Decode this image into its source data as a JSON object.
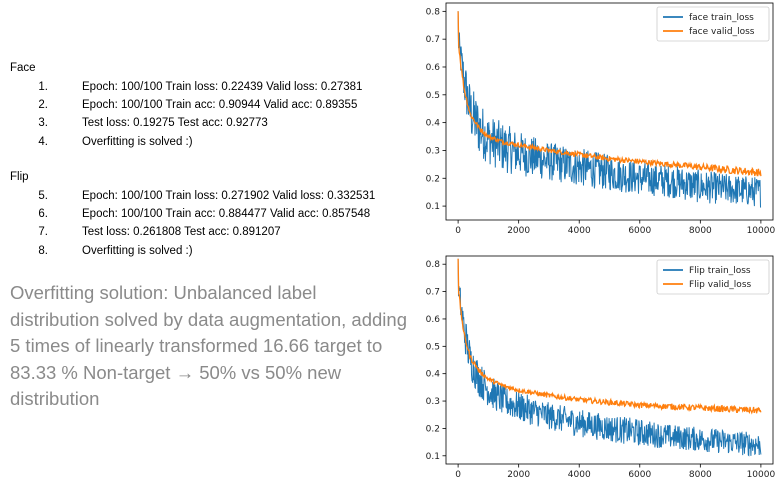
{
  "face": {
    "title": "Face",
    "items": [
      {
        "num": "1.",
        "text": "Epoch: 100/100 Train loss: 0.22439 Valid loss: 0.27381"
      },
      {
        "num": "2.",
        "text": "Epoch: 100/100 Train acc: 0.90944 Valid acc: 0.89355"
      },
      {
        "num": "3.",
        "text": "Test loss: 0.19275 Test acc: 0.92773"
      },
      {
        "num": "4.",
        "text": "Overfitting is solved :)"
      }
    ]
  },
  "flip": {
    "title": "Flip",
    "items": [
      {
        "num": "5.",
        "text": "Epoch: 100/100 Train loss: 0.271902 Valid loss: 0.332531"
      },
      {
        "num": "6.",
        "text": "Epoch: 100/100 Train acc: 0.884477 Valid acc: 0.857548"
      },
      {
        "num": "7.",
        "text": "Test loss: 0.261808 Test acc: 0.891207"
      },
      {
        "num": "8.",
        "text": "Overfitting is solved :)"
      }
    ]
  },
  "summary": "Overfitting solution: Unbalanced label distribution solved by data augmentation, adding 5 times of linearly transformed 16.66 target to 83.33 % Non-target → 50% vs 50% new distribution",
  "chart_data": [
    {
      "type": "line",
      "title": "",
      "xlabel": "",
      "ylabel": "",
      "xlim": [
        -400,
        10400
      ],
      "ylim": [
        0.05,
        0.83
      ],
      "xticks": [
        0,
        2000,
        4000,
        6000,
        8000,
        10000
      ],
      "yticks": [
        0.1,
        0.2,
        0.3,
        0.4,
        0.5,
        0.6,
        0.7,
        0.8
      ],
      "grid": false,
      "legend": "top-right",
      "series": [
        {
          "name": "face train_loss",
          "color": "#1f77b4",
          "x": [
            0,
            100,
            200,
            400,
            700,
            1000,
            1500,
            2000,
            3000,
            4000,
            5000,
            6000,
            7000,
            8000,
            9000,
            10000
          ],
          "y": [
            0.7,
            0.62,
            0.55,
            0.44,
            0.38,
            0.34,
            0.31,
            0.29,
            0.26,
            0.24,
            0.22,
            0.2,
            0.19,
            0.17,
            0.16,
            0.15
          ],
          "noise": [
            0.05,
            0.07,
            0.09,
            0.1,
            0.1,
            0.09,
            0.09,
            0.08,
            0.07,
            0.07,
            0.065,
            0.06,
            0.06,
            0.06,
            0.055,
            0.055
          ]
        },
        {
          "name": "face valid_loss",
          "color": "#ff7f0e",
          "x": [
            0,
            100,
            200,
            400,
            700,
            1000,
            1500,
            2000,
            3000,
            4000,
            5000,
            6000,
            7000,
            8000,
            9000,
            10000
          ],
          "y": [
            0.7,
            0.6,
            0.52,
            0.43,
            0.38,
            0.35,
            0.33,
            0.32,
            0.3,
            0.285,
            0.27,
            0.26,
            0.25,
            0.24,
            0.23,
            0.22
          ],
          "noise": [
            0.01,
            0.01,
            0.01,
            0.01,
            0.008,
            0.008,
            0.008,
            0.008,
            0.008,
            0.009,
            0.01,
            0.01,
            0.01,
            0.012,
            0.014,
            0.014
          ]
        }
      ]
    },
    {
      "type": "line",
      "title": "",
      "xlabel": "",
      "ylabel": "",
      "xlim": [
        -400,
        10400
      ],
      "ylim": [
        0.07,
        0.83
      ],
      "xticks": [
        0,
        2000,
        4000,
        6000,
        8000,
        10000
      ],
      "yticks": [
        0.1,
        0.2,
        0.3,
        0.4,
        0.5,
        0.6,
        0.7,
        0.8
      ],
      "grid": false,
      "legend": "top-right",
      "series": [
        {
          "name": "Flip train_loss",
          "color": "#1f77b4",
          "x": [
            0,
            100,
            200,
            400,
            700,
            1000,
            1500,
            2000,
            3000,
            4000,
            5000,
            6000,
            7000,
            8000,
            9000,
            10000
          ],
          "y": [
            0.72,
            0.64,
            0.56,
            0.45,
            0.38,
            0.34,
            0.3,
            0.28,
            0.245,
            0.22,
            0.2,
            0.185,
            0.17,
            0.16,
            0.15,
            0.14
          ],
          "noise": [
            0.05,
            0.06,
            0.07,
            0.07,
            0.065,
            0.06,
            0.055,
            0.055,
            0.05,
            0.05,
            0.05,
            0.05,
            0.045,
            0.045,
            0.045,
            0.045
          ]
        },
        {
          "name": "Flip valid_loss",
          "color": "#ff7f0e",
          "x": [
            0,
            100,
            200,
            400,
            700,
            1000,
            1500,
            2000,
            3000,
            4000,
            5000,
            6000,
            7000,
            8000,
            9000,
            10000
          ],
          "y": [
            0.72,
            0.62,
            0.54,
            0.46,
            0.41,
            0.38,
            0.355,
            0.34,
            0.32,
            0.305,
            0.295,
            0.285,
            0.28,
            0.275,
            0.27,
            0.265
          ],
          "noise": [
            0.01,
            0.01,
            0.01,
            0.01,
            0.008,
            0.008,
            0.008,
            0.008,
            0.009,
            0.009,
            0.01,
            0.01,
            0.011,
            0.011,
            0.012,
            0.012
          ]
        }
      ]
    }
  ]
}
